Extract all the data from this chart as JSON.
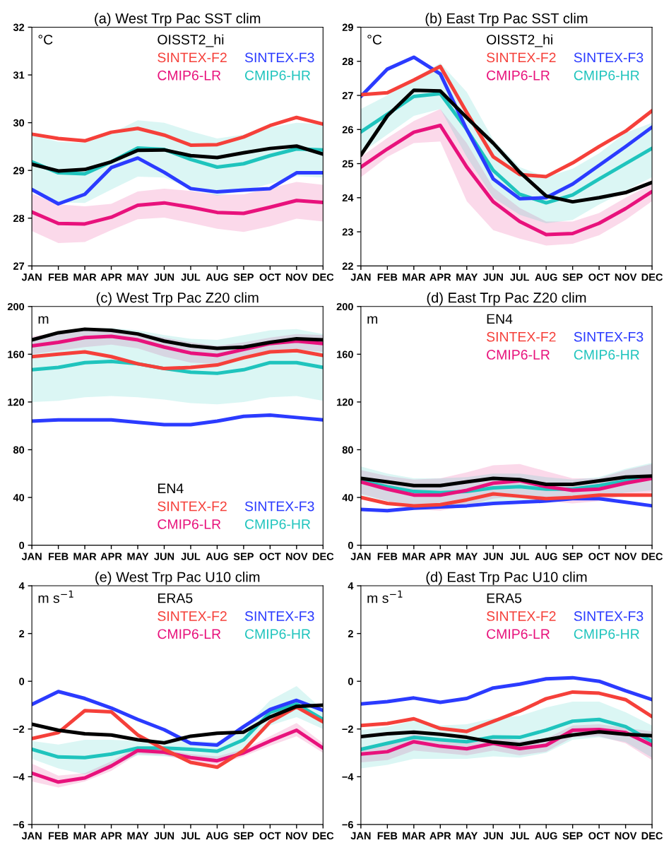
{
  "chart_data": [
    {
      "type": "line",
      "title": "(a) West Trp Pac SST clim",
      "ylabel": "°C",
      "legend": "top right",
      "categories": [
        "JAN",
        "FEB",
        "MAR",
        "APR",
        "MAY",
        "JUN",
        "JUL",
        "AUG",
        "SEP",
        "OCT",
        "NOV",
        "DEC"
      ],
      "ylim": [
        27,
        32
      ],
      "yticks": [
        27,
        28,
        29,
        30,
        31,
        32
      ],
      "series": [
        {
          "name": "OISST2_hi",
          "color": "#000000",
          "values": [
            29.13,
            28.99,
            29.02,
            29.18,
            29.42,
            29.43,
            29.31,
            29.27,
            29.37,
            29.46,
            29.51,
            29.34
          ]
        },
        {
          "name": "SINTEX-F2",
          "color": "#f5403a",
          "values": [
            29.76,
            29.67,
            29.62,
            29.8,
            29.88,
            29.74,
            29.53,
            29.54,
            29.7,
            29.94,
            30.11,
            29.97
          ]
        },
        {
          "name": "SINTEX-F3",
          "color": "#2b3bff",
          "values": [
            28.6,
            28.3,
            28.5,
            29.06,
            29.26,
            28.96,
            28.62,
            28.55,
            28.59,
            28.62,
            28.95,
            28.95
          ]
        },
        {
          "name": "CMIP6-LR",
          "color": "#e8127c",
          "values": [
            28.13,
            27.89,
            27.88,
            28.02,
            28.27,
            28.32,
            28.23,
            28.12,
            28.1,
            28.23,
            28.37,
            28.33
          ],
          "lower": [
            27.73,
            27.48,
            27.5,
            27.75,
            27.98,
            28.01,
            27.9,
            27.78,
            27.71,
            27.83,
            27.99,
            27.93
          ],
          "upper": [
            28.52,
            28.29,
            28.25,
            28.3,
            28.56,
            28.62,
            28.57,
            28.49,
            28.5,
            28.63,
            28.76,
            28.7
          ]
        },
        {
          "name": "CMIP6-HR",
          "color": "#1fc4bd",
          "values": [
            29.18,
            28.95,
            28.93,
            29.18,
            29.47,
            29.44,
            29.23,
            29.07,
            29.14,
            29.31,
            29.45,
            29.43
          ],
          "lower": [
            28.55,
            28.33,
            28.32,
            28.6,
            28.87,
            28.85,
            28.62,
            28.47,
            28.57,
            28.72,
            28.88,
            28.85
          ],
          "upper": [
            29.75,
            29.6,
            29.58,
            29.78,
            30.05,
            30.0,
            29.82,
            29.67,
            29.75,
            29.9,
            30.0,
            29.97
          ]
        }
      ]
    },
    {
      "type": "line",
      "title": "(b) East Trp Pac SST clim",
      "ylabel": "°C",
      "legend": "top right",
      "categories": [
        "JAN",
        "FEB",
        "MAR",
        "APR",
        "MAY",
        "JUN",
        "JUL",
        "AUG",
        "SEP",
        "OCT",
        "NOV",
        "DEC"
      ],
      "ylim": [
        22,
        29
      ],
      "yticks": [
        22,
        23,
        24,
        25,
        26,
        27,
        28,
        29
      ],
      "series": [
        {
          "name": "OISST2_hi",
          "color": "#000000",
          "values": [
            25.25,
            26.4,
            27.15,
            27.13,
            26.35,
            25.6,
            24.75,
            24.05,
            23.88,
            24.0,
            24.15,
            24.45
          ]
        },
        {
          "name": "SINTEX-F2",
          "color": "#f5403a",
          "values": [
            27.02,
            27.08,
            27.45,
            27.85,
            26.5,
            25.2,
            24.68,
            24.62,
            25.02,
            25.5,
            25.95,
            26.55
          ]
        },
        {
          "name": "SINTEX-F3",
          "color": "#2b3bff",
          "values": [
            26.97,
            27.77,
            28.12,
            27.63,
            26.0,
            24.55,
            23.97,
            24.0,
            24.4,
            24.95,
            25.5,
            26.07
          ]
        },
        {
          "name": "CMIP6-LR",
          "color": "#e8127c",
          "values": [
            24.9,
            25.43,
            25.92,
            26.12,
            24.9,
            23.88,
            23.3,
            22.92,
            22.95,
            23.25,
            23.68,
            24.18
          ],
          "lower": [
            24.6,
            25.2,
            25.6,
            25.65,
            23.9,
            23.05,
            22.8,
            22.6,
            22.65,
            22.9,
            23.35,
            23.9
          ],
          "upper": [
            25.2,
            25.75,
            26.25,
            26.6,
            25.6,
            24.3,
            23.7,
            23.3,
            23.3,
            23.55,
            24.0,
            24.4
          ]
        },
        {
          "name": "CMIP6-HR",
          "color": "#1fc4bd",
          "values": [
            25.93,
            26.45,
            26.97,
            27.05,
            26.0,
            24.8,
            24.1,
            23.85,
            24.08,
            24.55,
            25.0,
            25.45
          ],
          "lower": [
            25.3,
            25.85,
            26.4,
            26.6,
            25.2,
            24.0,
            23.5,
            23.25,
            23.35,
            23.8,
            24.2,
            24.6
          ],
          "upper": [
            26.6,
            27.0,
            27.5,
            27.95,
            27.1,
            25.7,
            24.9,
            24.6,
            24.85,
            25.3,
            25.9,
            26.2
          ]
        }
      ]
    },
    {
      "type": "line",
      "title": "(c) West Trp Pac Z20 clim",
      "ylabel": "m",
      "legend": "bottom right",
      "categories": [
        "JAN",
        "FEB",
        "MAR",
        "APR",
        "MAY",
        "JUN",
        "JUL",
        "AUG",
        "SEP",
        "OCT",
        "NOV",
        "DEC"
      ],
      "ylim": [
        0,
        200
      ],
      "yticks": [
        0,
        40,
        80,
        120,
        160,
        200
      ],
      "series": [
        {
          "name": "EN4",
          "color": "#000000",
          "values": [
            172,
            178,
            181,
            180,
            177,
            171,
            167,
            165,
            166,
            170,
            173,
            172
          ]
        },
        {
          "name": "SINTEX-F2",
          "color": "#f5403a",
          "values": [
            158,
            160,
            162,
            158,
            152,
            148,
            149,
            151,
            157,
            162,
            163,
            159
          ]
        },
        {
          "name": "SINTEX-F3",
          "color": "#2b3bff",
          "values": [
            104,
            105,
            105,
            105,
            103,
            101,
            101,
            104,
            108,
            109,
            107,
            105
          ]
        },
        {
          "name": "CMIP6-LR",
          "color": "#e8127c",
          "values": [
            167,
            170,
            174,
            175,
            172,
            166,
            161,
            159,
            164,
            169,
            171,
            169
          ],
          "lower": [
            160,
            163,
            166,
            168,
            165,
            158,
            153,
            152,
            157,
            162,
            164,
            162
          ],
          "upper": [
            175,
            178,
            181,
            181,
            178,
            174,
            170,
            167,
            170,
            174,
            177,
            176
          ]
        },
        {
          "name": "CMIP6-HR",
          "color": "#1fc4bd",
          "values": [
            147,
            149,
            153,
            154,
            152,
            148,
            145,
            144,
            147,
            153,
            153,
            149
          ],
          "lower": [
            120,
            121,
            124,
            125,
            124,
            122,
            119,
            118,
            120,
            124,
            125,
            121
          ],
          "upper": [
            174,
            178,
            181,
            182,
            180,
            176,
            173,
            172,
            176,
            180,
            181,
            177
          ]
        }
      ]
    },
    {
      "type": "line",
      "title": "(d) East Trp Pac Z20 clim",
      "ylabel": "m",
      "legend": "top right",
      "categories": [
        "JAN",
        "FEB",
        "MAR",
        "APR",
        "MAY",
        "JUN",
        "JUL",
        "AUG",
        "SEP",
        "OCT",
        "NOV",
        "DEC"
      ],
      "ylim": [
        0,
        200
      ],
      "yticks": [
        0,
        40,
        80,
        120,
        160,
        200
      ],
      "series": [
        {
          "name": "EN4",
          "color": "#000000",
          "values": [
            56,
            53,
            50,
            50,
            53,
            56,
            55,
            51,
            51,
            54,
            57,
            58
          ]
        },
        {
          "name": "SINTEX-F2",
          "color": "#f5403a",
          "values": [
            40,
            35,
            33,
            34,
            38,
            43,
            41,
            39,
            40,
            42,
            42,
            42
          ]
        },
        {
          "name": "SINTEX-F3",
          "color": "#2b3bff",
          "values": [
            30,
            29,
            31,
            32,
            33,
            35,
            36,
            37,
            39,
            39,
            36,
            33
          ]
        },
        {
          "name": "CMIP6-LR",
          "color": "#e8127c",
          "values": [
            53,
            47,
            42,
            42,
            46,
            52,
            54,
            49,
            46,
            47,
            52,
            56
          ],
          "lower": [
            43,
            37,
            30,
            29,
            33,
            39,
            41,
            37,
            35,
            37,
            42,
            44
          ],
          "upper": [
            63,
            58,
            55,
            56,
            61,
            67,
            68,
            62,
            56,
            56,
            63,
            68
          ]
        },
        {
          "name": "CMIP6-HR",
          "color": "#1fc4bd",
          "values": [
            54,
            49,
            45,
            44,
            45,
            48,
            49,
            47,
            47,
            50,
            54,
            57
          ],
          "lower": [
            42,
            37,
            34,
            33,
            34,
            36,
            38,
            37,
            38,
            40,
            44,
            46
          ],
          "upper": [
            66,
            60,
            56,
            56,
            57,
            60,
            60,
            57,
            55,
            57,
            64,
            69
          ]
        }
      ]
    },
    {
      "type": "line",
      "title": "(e) West Trp Pac U10 clim",
      "ylabel": "m s$^{−1}$",
      "legend": "top right",
      "categories": [
        "JAN",
        "FEB",
        "MAR",
        "APR",
        "MAY",
        "JUN",
        "JUL",
        "AUG",
        "SEP",
        "OCT",
        "NOV",
        "DEC"
      ],
      "ylim": [
        -6,
        4
      ],
      "yticks": [
        {
          "value": -6,
          "label": "−6"
        },
        {
          "value": -4,
          "label": "−4"
        },
        {
          "value": -2,
          "label": "−2"
        },
        0,
        2,
        4
      ],
      "series": [
        {
          "name": "ERA5",
          "color": "#000000",
          "values": [
            -1.8,
            -2.05,
            -2.2,
            -2.25,
            -2.45,
            -2.58,
            -2.3,
            -2.18,
            -2.13,
            -1.5,
            -1.05,
            -1.0
          ]
        },
        {
          "name": "SINTEX-F2",
          "color": "#f5403a",
          "values": [
            -2.4,
            -2.15,
            -1.23,
            -1.28,
            -2.25,
            -2.85,
            -3.4,
            -3.6,
            -2.9,
            -1.7,
            -1.08,
            -1.7
          ]
        },
        {
          "name": "SINTEX-F3",
          "color": "#2b3bff",
          "values": [
            -0.97,
            -0.43,
            -0.72,
            -1.12,
            -1.6,
            -2.03,
            -2.6,
            -2.67,
            -1.9,
            -1.18,
            -0.8,
            -1.22
          ]
        },
        {
          "name": "CMIP6-LR",
          "color": "#e8127c",
          "values": [
            -3.85,
            -4.22,
            -4.05,
            -3.55,
            -2.9,
            -2.97,
            -3.2,
            -3.33,
            -3.0,
            -2.5,
            -2.05,
            -2.8
          ],
          "lower": [
            -4.2,
            -4.45,
            -4.2,
            -3.75,
            -3.05,
            -3.1,
            -3.35,
            -3.5,
            -3.15,
            -2.7,
            -2.3,
            -3.0
          ],
          "upper": [
            -3.45,
            -3.95,
            -3.85,
            -3.35,
            -2.75,
            -2.85,
            -3.05,
            -3.15,
            -2.85,
            -2.3,
            -1.75,
            -2.6
          ]
        },
        {
          "name": "CMIP6-HR",
          "color": "#1fc4bd",
          "values": [
            -2.85,
            -3.17,
            -3.2,
            -3.05,
            -2.8,
            -2.8,
            -2.85,
            -2.93,
            -2.45,
            -1.3,
            -0.95,
            -1.6
          ],
          "lower": [
            -3.25,
            -3.65,
            -3.9,
            -3.55,
            -3.1,
            -3.15,
            -3.2,
            -3.3,
            -2.95,
            -1.85,
            -1.5,
            -2.0
          ],
          "upper": [
            -2.5,
            -2.65,
            -2.45,
            -2.45,
            -2.5,
            -2.45,
            -2.5,
            -2.55,
            -1.95,
            -0.8,
            -0.2,
            -1.2
          ]
        }
      ]
    },
    {
      "type": "line",
      "title": "(d) East Trp Pac U10 clim",
      "ylabel": "m s$^{−1}$",
      "legend": "top right",
      "categories": [
        "JAN",
        "FEB",
        "MAR",
        "APR",
        "MAY",
        "JUN",
        "JUL",
        "AUG",
        "SEP",
        "OCT",
        "NOV",
        "DEC"
      ],
      "ylim": [
        -6,
        4
      ],
      "yticks": [
        {
          "value": -6,
          "label": "−6"
        },
        {
          "value": -4,
          "label": "−4"
        },
        {
          "value": -2,
          "label": "−2"
        },
        0,
        2,
        4
      ],
      "series": [
        {
          "name": "ERA5",
          "color": "#000000",
          "values": [
            -2.32,
            -2.2,
            -2.13,
            -2.22,
            -2.35,
            -2.55,
            -2.65,
            -2.45,
            -2.25,
            -2.12,
            -2.22,
            -2.28
          ]
        },
        {
          "name": "SINTEX-F2",
          "color": "#f5403a",
          "values": [
            -1.85,
            -1.77,
            -1.57,
            -1.98,
            -2.1,
            -1.68,
            -1.25,
            -0.73,
            -0.45,
            -0.5,
            -0.77,
            -1.48
          ]
        },
        {
          "name": "SINTEX-F3",
          "color": "#2b3bff",
          "values": [
            -0.95,
            -0.85,
            -0.7,
            -0.88,
            -0.72,
            -0.28,
            -0.12,
            0.1,
            0.15,
            0.0,
            -0.4,
            -0.77
          ]
        },
        {
          "name": "CMIP6-LR",
          "color": "#e8127c",
          "values": [
            -3.05,
            -2.95,
            -2.53,
            -2.72,
            -2.83,
            -2.6,
            -2.82,
            -2.68,
            -2.05,
            -2.02,
            -2.15,
            -2.68
          ],
          "lower": [
            -3.4,
            -3.3,
            -2.9,
            -3.0,
            -3.1,
            -2.9,
            -3.1,
            -2.95,
            -2.35,
            -2.3,
            -2.6,
            -3.3
          ],
          "upper": [
            -2.75,
            -2.65,
            -2.2,
            -2.4,
            -2.5,
            -2.3,
            -2.5,
            -2.4,
            -1.85,
            -1.8,
            -1.95,
            -2.1
          ]
        },
        {
          "name": "CMIP6-HR",
          "color": "#1fc4bd",
          "values": [
            -2.85,
            -2.6,
            -2.35,
            -2.45,
            -2.53,
            -2.33,
            -2.35,
            -2.05,
            -1.67,
            -1.6,
            -1.9,
            -2.52
          ],
          "lower": [
            -3.65,
            -3.5,
            -3.25,
            -3.25,
            -3.25,
            -3.15,
            -3.2,
            -3.0,
            -2.45,
            -2.35,
            -2.55,
            -3.2
          ],
          "upper": [
            -2.05,
            -1.9,
            -1.65,
            -1.85,
            -1.8,
            -1.55,
            -1.45,
            -1.1,
            -0.85,
            -0.85,
            -1.3,
            -1.85
          ]
        }
      ]
    }
  ]
}
